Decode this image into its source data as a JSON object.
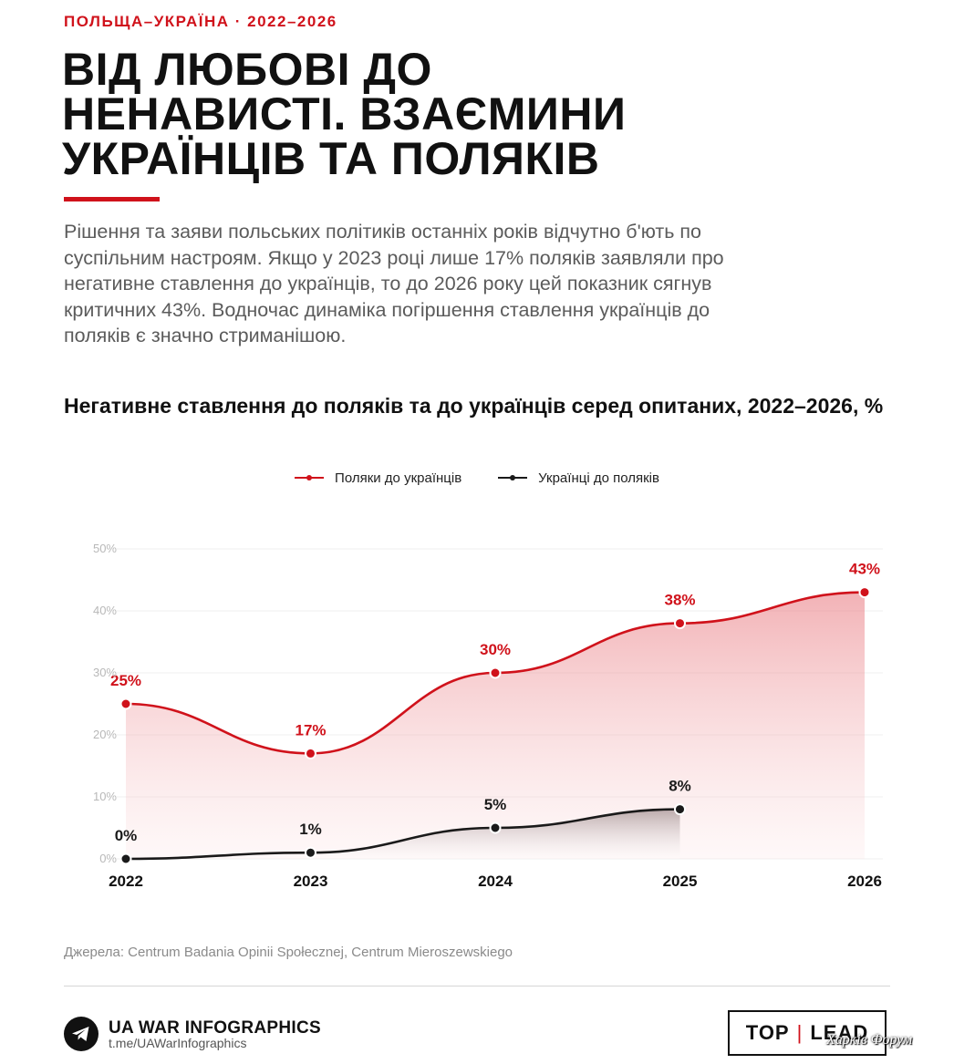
{
  "kicker": "ПОЛЬЩА–УКРАЇНА · 2022–2026",
  "headline": {
    "line1": "ВІД ЛЮБОВІ ДО",
    "line2": "НЕНАВИСТІ. ВЗАЄМИНИ",
    "line3": "УКРАЇНЦІВ ТА ПОЛЯКІВ"
  },
  "lead": "Рішення та заяви польських політиків останніх років відчутно б'ють по суспільним настроям. Якщо у 2023 році лише 17% поляків заявляли про негативне ставлення до українців, то до 2026 року цей показник сягнув критичних 43%. Водночас динаміка погіршення ставлення українців до поляків є значно стриманішою.",
  "chart_data": {
    "type": "area",
    "title": "Негативне ставлення до поляків та до українців серед опитаних, 2022–2026, %",
    "categories": [
      "2022",
      "2023",
      "2024",
      "2025",
      "2026"
    ],
    "ylim": [
      0,
      50
    ],
    "yticks": [
      0,
      10,
      20,
      30,
      40,
      50
    ],
    "ytick_labels": [
      "0%",
      "10%",
      "20%",
      "30%",
      "40%",
      "50%"
    ],
    "grid": true,
    "legend_position": "top-center",
    "series": [
      {
        "name": "Поляки до українців",
        "color": "#d0121b",
        "values": [
          25,
          17,
          30,
          38,
          43
        ],
        "labels": [
          "25%",
          "17%",
          "30%",
          "38%",
          "43%"
        ]
      },
      {
        "name": "Українці до поляків",
        "color": "#1a1a1a",
        "values": [
          0,
          1,
          5,
          8,
          null
        ],
        "labels": [
          "0%",
          "1%",
          "5%",
          "8%",
          ""
        ]
      }
    ]
  },
  "source": "Джерела: Centrum Badania Opinii Społecznej, Centrum Mieroszewskiego",
  "footer": {
    "brand_name": "UA WAR INFOGRAPHICS",
    "brand_url": "t.me/UAWarInfographics",
    "brand_icon": "telegram-icon",
    "partner_left": "TOP",
    "partner_sep": "|",
    "partner_right": "LEAD",
    "watermark": "Харків Форум"
  }
}
